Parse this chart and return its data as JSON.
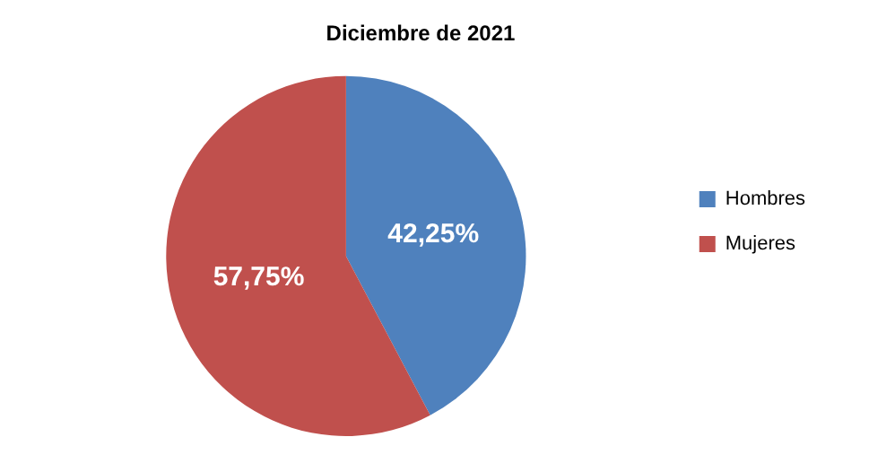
{
  "chart_data": {
    "type": "pie",
    "title": "Diciembre de 2021",
    "categories": [
      "Hombres",
      "Mujeres"
    ],
    "values": [
      42.25,
      57.75
    ],
    "colors": [
      "#4f81bd",
      "#c0504d"
    ],
    "value_labels": [
      "42,25%",
      "57,75%"
    ],
    "legend": "right"
  }
}
